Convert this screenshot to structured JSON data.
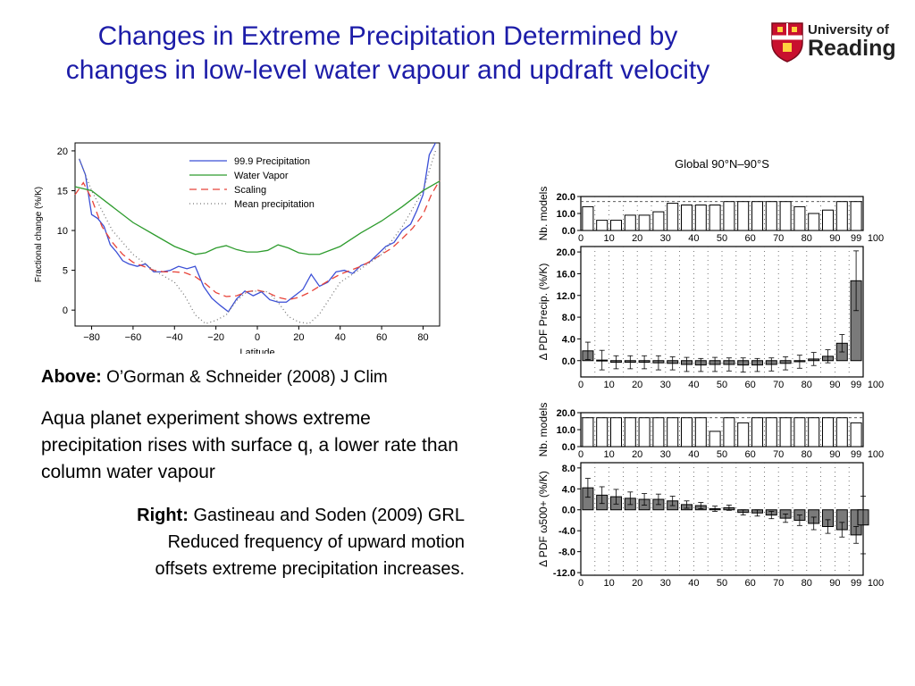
{
  "slide": {
    "title_line1": "Changes in Extreme Precipitation Determined by",
    "title_line2": "changes in low-level water vapour and updraft velocity",
    "logo": {
      "line1": "University of",
      "line2": "Reading",
      "crest_color": "#c8102e"
    },
    "above_label": "Above:",
    "above_citation": "O’Gorman & Schneider (2008) J Clim",
    "aqua_text": "Aqua planet experiment shows extreme precipitation rises with surface q, a lower rate than column water vapour",
    "right_label": "Right:",
    "right_citation": "Gastineau and Soden (2009) GRL",
    "right_line2": "Reduced frequency of upward motion",
    "right_line3": "offsets extreme precipitation increases."
  },
  "chart_data": [
    {
      "type": "line",
      "xlabel": "Latitude",
      "ylabel": "Fractional change (%/K)",
      "xlim": [
        -88,
        88
      ],
      "ylim": [
        -2,
        21
      ],
      "xticks": [
        -80,
        -60,
        -40,
        -20,
        0,
        20,
        40,
        60,
        80
      ],
      "yticks": [
        0,
        5,
        10,
        15,
        20
      ],
      "legend_position": "top-right",
      "series": [
        {
          "name": "99.9 Precipitation",
          "color": "#3b4fd6",
          "dash": "",
          "x": [
            -86,
            -83,
            -80,
            -77,
            -74,
            -71,
            -68,
            -65,
            -62,
            -58,
            -54,
            -50,
            -46,
            -42,
            -38,
            -34,
            -30,
            -26,
            -22,
            -18,
            -14,
            -10,
            -6,
            -2,
            2,
            6,
            10,
            14,
            18,
            22,
            26,
            30,
            34,
            38,
            42,
            46,
            50,
            54,
            58,
            62,
            66,
            70,
            74,
            77,
            80,
            83,
            86
          ],
          "y": [
            19,
            17,
            12,
            11.5,
            10.5,
            8.2,
            7.3,
            6.2,
            5.8,
            5.5,
            5.8,
            4.8,
            4.8,
            5,
            5.5,
            5.2,
            5.5,
            3,
            1.5,
            0.6,
            -0.2,
            1.4,
            2.4,
            1.8,
            2.3,
            1.3,
            1,
            1,
            1.8,
            2.6,
            4.5,
            3,
            3.5,
            4.8,
            5,
            4.6,
            5.6,
            6,
            7,
            8,
            8.5,
            10,
            10.8,
            12.5,
            14.5,
            19.5,
            21
          ]
        },
        {
          "name": "Water Vapor",
          "color": "#2e9c2e",
          "dash": "",
          "x": [
            -88,
            -80,
            -70,
            -60,
            -50,
            -40,
            -30,
            -25,
            -20,
            -15,
            -10,
            -5,
            0,
            5,
            10,
            15,
            20,
            25,
            30,
            40,
            50,
            60,
            70,
            80,
            88
          ],
          "y": [
            15.5,
            15,
            13,
            11,
            9.5,
            8,
            7,
            7.2,
            7.8,
            8.1,
            7.6,
            7.3,
            7.3,
            7.5,
            8.2,
            7.8,
            7.2,
            7,
            7,
            8,
            9.7,
            11.2,
            13,
            15,
            16.2
          ]
        },
        {
          "name": "Scaling",
          "color": "#e8443a",
          "dash": "8,5",
          "x": [
            -88,
            -84,
            -80,
            -75,
            -70,
            -65,
            -60,
            -55,
            -50,
            -45,
            -40,
            -35,
            -30,
            -25,
            -20,
            -15,
            -10,
            -5,
            0,
            5,
            10,
            15,
            20,
            25,
            30,
            35,
            40,
            45,
            50,
            55,
            60,
            65,
            70,
            75,
            80,
            84,
            88
          ],
          "y": [
            14.5,
            16,
            14,
            10.5,
            8.5,
            7,
            6,
            5.5,
            5,
            4.8,
            4.8,
            4.7,
            4.2,
            3.3,
            2.2,
            1.7,
            1.8,
            2.3,
            2.5,
            2.2,
            1.6,
            1.3,
            1.6,
            2.2,
            3,
            3.8,
            4.5,
            5,
            5.5,
            6.2,
            7,
            7.8,
            9,
            10.3,
            12,
            14.5,
            16.3
          ]
        },
        {
          "name": "Mean precipitation",
          "color": "#777777",
          "dash": "1,3",
          "x": [
            -86,
            -80,
            -70,
            -60,
            -50,
            -40,
            -35,
            -30,
            -25,
            -20,
            -15,
            -10,
            -5,
            0,
            5,
            10,
            15,
            20,
            25,
            30,
            35,
            40,
            50,
            60,
            70,
            80,
            86
          ],
          "y": [
            19,
            15,
            10,
            7,
            5,
            3.5,
            1.8,
            -0.6,
            -1.7,
            -1.3,
            -0.6,
            1.2,
            2.3,
            2.4,
            2.3,
            1,
            -0.8,
            -1.5,
            -1.7,
            -0.5,
            1.5,
            3.5,
            5.2,
            7,
            10.5,
            15,
            20
          ]
        }
      ]
    },
    {
      "type": "bar",
      "title": "Global 90°N–90°S",
      "ylabel": "Nb. models",
      "x_ticks": [
        "0",
        "10",
        "20",
        "30",
        "40",
        "50",
        "60",
        "70",
        "80",
        "90",
        "99",
        "100"
      ],
      "yticks": [
        "0.0",
        "10.0",
        "20.0"
      ],
      "ylim": [
        0,
        20
      ],
      "values": [
        14,
        6,
        6,
        9,
        9,
        11,
        16,
        15,
        15,
        15,
        17,
        17,
        17,
        17,
        17,
        14,
        10,
        12,
        17,
        17
      ]
    },
    {
      "type": "bar",
      "ylabel": "Δ PDF Precip. (%/K)",
      "x_ticks": [
        "0",
        "10",
        "20",
        "30",
        "40",
        "50",
        "60",
        "70",
        "80",
        "90",
        "99",
        "100"
      ],
      "yticks": [
        "0.0",
        "4.0",
        "8.0",
        "12.0",
        "16.0",
        "20.0"
      ],
      "ylim": [
        -3,
        21
      ],
      "values": [
        1.8,
        0.1,
        -0.3,
        -0.3,
        -0.3,
        -0.4,
        -0.5,
        -0.7,
        -0.8,
        -0.7,
        -0.7,
        -0.8,
        -0.8,
        -0.7,
        -0.5,
        -0.2,
        0.3,
        0.8,
        3.2,
        14.7
      ],
      "error": [
        1.6,
        1.8,
        1.2,
        1.2,
        1.2,
        1.3,
        1.2,
        1.3,
        1.2,
        1.3,
        1.2,
        1.3,
        1.2,
        1.2,
        1.2,
        1.2,
        1.2,
        1.2,
        1.6,
        5.5
      ]
    },
    {
      "type": "bar",
      "ylabel": "Nb. models",
      "x_ticks": [
        "0",
        "10",
        "20",
        "30",
        "40",
        "50",
        "60",
        "70",
        "80",
        "90",
        "99",
        "100"
      ],
      "yticks": [
        "0.0",
        "10.0",
        "20.0"
      ],
      "ylim": [
        0,
        20
      ],
      "values": [
        17,
        17,
        17,
        17,
        17,
        17,
        17,
        17,
        17,
        9,
        17,
        14,
        17,
        17,
        17,
        17,
        17,
        17,
        17,
        14
      ]
    },
    {
      "type": "bar",
      "ylabel": "Δ PDF ω500+ (%/K)",
      "x_ticks": [
        "0",
        "10",
        "20",
        "30",
        "40",
        "50",
        "60",
        "70",
        "80",
        "90",
        "99",
        "100"
      ],
      "yticks": [
        "8.0",
        "4.0",
        "0.0",
        "-4.0",
        "-8.0",
        "-12.0"
      ],
      "ylim": [
        -12.5,
        9
      ],
      "values": [
        4.2,
        2.8,
        2.5,
        2.2,
        2.0,
        2.0,
        1.7,
        1.0,
        0.8,
        0.2,
        0.4,
        -0.5,
        -0.6,
        -1.0,
        -1.6,
        -2.0,
        -2.6,
        -3.2,
        -3.8,
        -4.8,
        -2.9
      ],
      "error": [
        1.8,
        1.6,
        1.4,
        1.2,
        1.1,
        1.0,
        0.9,
        0.7,
        0.6,
        0.5,
        0.5,
        0.5,
        0.6,
        0.7,
        0.8,
        1.0,
        1.2,
        1.3,
        1.4,
        1.6,
        5.5
      ]
    }
  ]
}
